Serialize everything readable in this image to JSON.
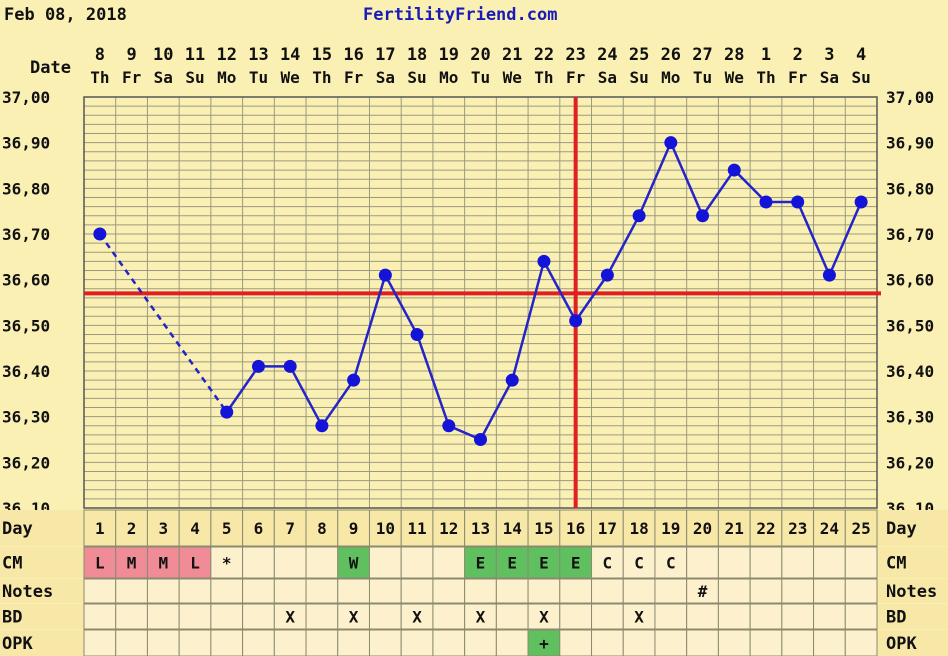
{
  "header": {
    "date": "Feb 08, 2018",
    "site": "FertilityFriend.com"
  },
  "chart_data": {
    "type": "line",
    "title": "",
    "xlabel": "Date",
    "ylabel": "",
    "ylim": [
      36.1,
      37.0
    ],
    "y_ticks": [
      "37,00",
      "36,90",
      "36,80",
      "36,70",
      "36,60",
      "36,50",
      "36,40",
      "36,30",
      "36,20",
      "36,10"
    ],
    "dates": [
      "8",
      "9",
      "10",
      "11",
      "12",
      "13",
      "14",
      "15",
      "16",
      "17",
      "18",
      "19",
      "20",
      "21",
      "22",
      "23",
      "24",
      "25",
      "26",
      "27",
      "28",
      "1",
      "2",
      "3",
      "4"
    ],
    "weekdays": [
      "Th",
      "Fr",
      "Sa",
      "Su",
      "Mo",
      "Tu",
      "We",
      "Th",
      "Fr",
      "Sa",
      "Su",
      "Mo",
      "Tu",
      "We",
      "Th",
      "Fr",
      "Sa",
      "Su",
      "Mo",
      "Tu",
      "We",
      "Th",
      "Fr",
      "Sa",
      "Su"
    ],
    "days": [
      "1",
      "2",
      "3",
      "4",
      "5",
      "6",
      "7",
      "8",
      "9",
      "10",
      "11",
      "12",
      "13",
      "14",
      "15",
      "16",
      "17",
      "18",
      "19",
      "20",
      "21",
      "22",
      "23",
      "24",
      "25"
    ],
    "temperatures": [
      36.7,
      null,
      null,
      null,
      36.31,
      36.41,
      36.41,
      36.28,
      36.38,
      36.61,
      36.48,
      36.28,
      36.25,
      36.38,
      36.64,
      36.51,
      36.61,
      36.74,
      36.9,
      36.74,
      36.84,
      36.77,
      36.77,
      36.61,
      36.77
    ],
    "dashed_segments": [
      [
        1,
        5
      ]
    ],
    "coverline": 36.57,
    "ovulation_day": 16,
    "grid": true,
    "line_color": "#2424c8",
    "marker_color": "#1414d8",
    "coverline_color": "#e02020"
  },
  "rows": [
    {
      "label": "Day"
    },
    {
      "label": "CM",
      "cells": {
        "1": "L",
        "2": "M",
        "3": "M",
        "4": "L",
        "5": "*",
        "9": "W",
        "13": "E",
        "14": "E",
        "15": "E",
        "16": "E",
        "17": "C",
        "18": "C",
        "19": "C"
      }
    },
    {
      "label": "Notes",
      "cells": {
        "20": "#"
      }
    },
    {
      "label": "BD",
      "cells": {
        "7": "X",
        "9": "X",
        "11": "X",
        "13": "X",
        "15": "X",
        "18": "X"
      }
    },
    {
      "label": "OPK",
      "cells": {
        "15": "+"
      }
    }
  ],
  "cell_colors": {
    "period": "#f08c96",
    "fertile": "#60c060",
    "default": "#fdf0cc",
    "row_bg": "#f8e8a8"
  }
}
